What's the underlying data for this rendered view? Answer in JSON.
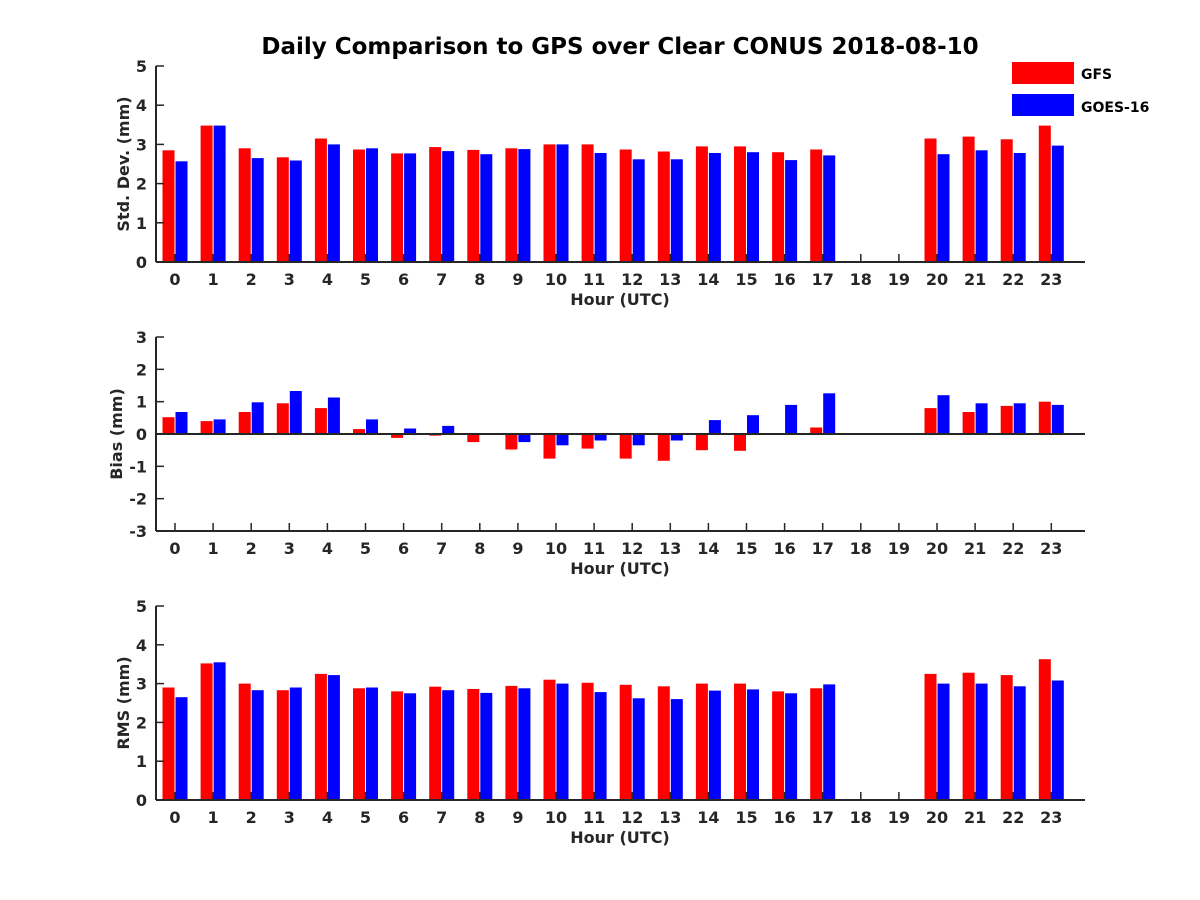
{
  "figure_title": "Daily Comparison to GPS over Clear CONUS 2018-08-10",
  "legend": [
    {
      "label": "GFS",
      "color": "#ff0000"
    },
    {
      "label": "GOES-16",
      "color": "#0000ff"
    }
  ],
  "chart_data": [
    {
      "type": "bar",
      "title": "Daily Comparison to GPS over Clear CONUS 2018-08-10",
      "xlabel": "Hour (UTC)",
      "ylabel": "Std. Dev. (mm)",
      "ylim": [
        0,
        5
      ],
      "yticks": [
        0,
        1,
        2,
        3,
        4,
        5
      ],
      "categories": [
        "0",
        "1",
        "2",
        "3",
        "4",
        "5",
        "6",
        "7",
        "8",
        "9",
        "10",
        "11",
        "12",
        "13",
        "14",
        "15",
        "16",
        "17",
        "18",
        "19",
        "20",
        "21",
        "22",
        "23"
      ],
      "series": [
        {
          "name": "GFS",
          "color": "#ff0000",
          "values": [
            2.85,
            3.48,
            2.9,
            2.67,
            3.15,
            2.87,
            2.77,
            2.93,
            2.86,
            2.9,
            3.0,
            3.0,
            2.87,
            2.82,
            2.95,
            2.95,
            2.8,
            2.87,
            null,
            null,
            3.15,
            3.2,
            3.13,
            3.48
          ]
        },
        {
          "name": "GOES-16",
          "color": "#0000ff",
          "values": [
            2.57,
            3.48,
            2.65,
            2.59,
            3.0,
            2.9,
            2.77,
            2.83,
            2.75,
            2.88,
            3.0,
            2.78,
            2.62,
            2.62,
            2.78,
            2.8,
            2.6,
            2.72,
            null,
            null,
            2.75,
            2.85,
            2.78,
            2.97
          ]
        }
      ]
    },
    {
      "type": "bar",
      "title": "",
      "xlabel": "Hour (UTC)",
      "ylabel": "Bias (mm)",
      "ylim": [
        -3,
        3
      ],
      "yticks": [
        -3,
        -2,
        -1,
        0,
        1,
        2,
        3
      ],
      "categories": [
        "0",
        "1",
        "2",
        "3",
        "4",
        "5",
        "6",
        "7",
        "8",
        "9",
        "10",
        "11",
        "12",
        "13",
        "14",
        "15",
        "16",
        "17",
        "18",
        "19",
        "20",
        "21",
        "22",
        "23"
      ],
      "series": [
        {
          "name": "GFS",
          "color": "#ff0000",
          "values": [
            0.52,
            0.4,
            0.68,
            0.95,
            0.8,
            0.15,
            -0.12,
            -0.05,
            -0.25,
            -0.48,
            -0.76,
            -0.45,
            -0.76,
            -0.83,
            -0.5,
            -0.52,
            -0.03,
            0.2,
            null,
            null,
            0.8,
            0.68,
            0.87,
            1.0
          ]
        },
        {
          "name": "GOES-16",
          "color": "#0000ff",
          "values": [
            0.68,
            0.45,
            0.98,
            1.33,
            1.13,
            0.45,
            0.17,
            0.25,
            0.02,
            -0.25,
            -0.35,
            -0.2,
            -0.35,
            -0.2,
            0.43,
            0.58,
            0.9,
            1.26,
            null,
            null,
            1.2,
            0.95,
            0.95,
            0.9
          ]
        }
      ]
    },
    {
      "type": "bar",
      "title": "",
      "xlabel": "Hour (UTC)",
      "ylabel": "RMS (mm)",
      "ylim": [
        0,
        5
      ],
      "yticks": [
        0,
        1,
        2,
        3,
        4,
        5
      ],
      "categories": [
        "0",
        "1",
        "2",
        "3",
        "4",
        "5",
        "6",
        "7",
        "8",
        "9",
        "10",
        "11",
        "12",
        "13",
        "14",
        "15",
        "16",
        "17",
        "18",
        "19",
        "20",
        "21",
        "22",
        "23"
      ],
      "series": [
        {
          "name": "GFS",
          "color": "#ff0000",
          "values": [
            2.9,
            3.52,
            3.0,
            2.83,
            3.25,
            2.88,
            2.8,
            2.92,
            2.86,
            2.94,
            3.1,
            3.02,
            2.97,
            2.93,
            3.0,
            3.0,
            2.8,
            2.88,
            null,
            null,
            3.25,
            3.28,
            3.22,
            3.63
          ]
        },
        {
          "name": "GOES-16",
          "color": "#0000ff",
          "values": [
            2.65,
            3.55,
            2.83,
            2.9,
            3.22,
            2.9,
            2.75,
            2.83,
            2.76,
            2.88,
            3.0,
            2.78,
            2.62,
            2.6,
            2.82,
            2.85,
            2.75,
            2.98,
            null,
            null,
            3.0,
            3.0,
            2.93,
            3.08
          ]
        }
      ]
    }
  ]
}
